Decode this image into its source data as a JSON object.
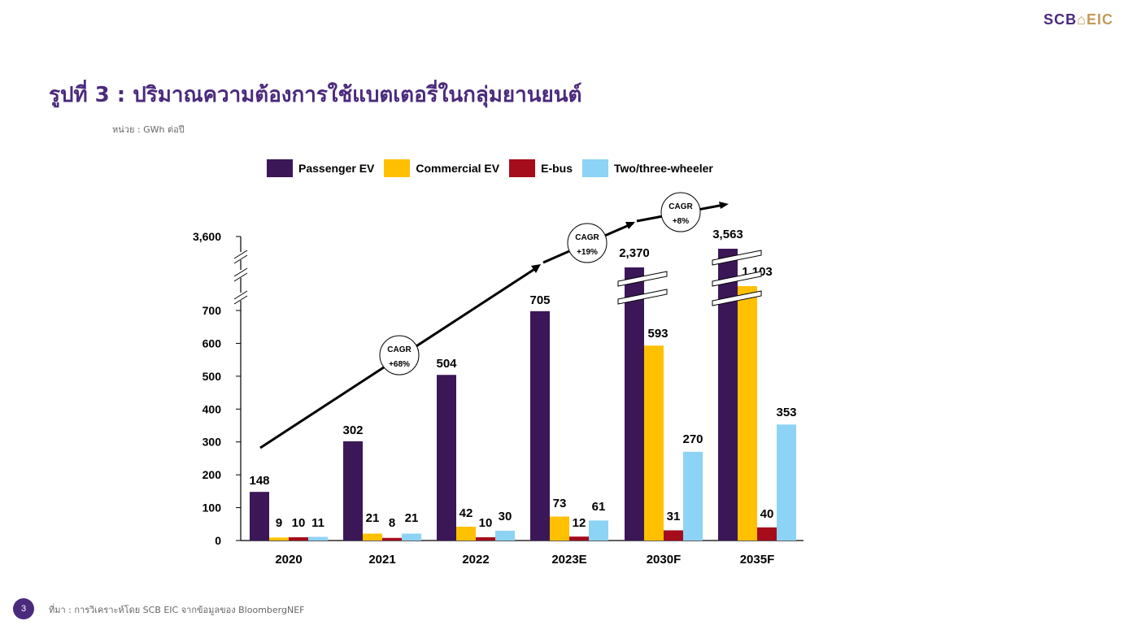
{
  "header": {
    "logo_left": "SCB",
    "logo_mark": "⌂",
    "logo_right": "EIC",
    "title": "รูปที่ 3 : ปริมาณความต้องการใช้แบตเตอรี่ในกลุ่มยานยนต์",
    "unit": "หน่วย : GWh ต่อปี"
  },
  "footer": {
    "page_number": "3",
    "source": "ที่มา : การวิเคราะห์โดย SCB EIC จากข้อมูลของ BloombergNEF"
  },
  "colors": {
    "brand_purple": "#4b2a7d",
    "brand_gold": "#c29a5b"
  },
  "chart_data": {
    "type": "bar",
    "categories": [
      "2020",
      "2021",
      "2022",
      "2023E",
      "2030F",
      "2035F"
    ],
    "series": [
      {
        "name": "Passenger EV",
        "color": "#3b1758",
        "values": [
          148,
          302,
          504,
          705,
          2370,
          3563
        ],
        "labels": [
          "148",
          "302",
          "504",
          "705",
          "2,370",
          "3,563"
        ]
      },
      {
        "name": "Commercial EV",
        "color": "#ffc000",
        "values": [
          9,
          21,
          42,
          73,
          593,
          1103
        ],
        "labels": [
          "9",
          "21",
          "42",
          "73",
          "593",
          "1,103"
        ]
      },
      {
        "name": "E-bus",
        "color": "#a50d1c",
        "values": [
          10,
          8,
          10,
          12,
          31,
          40
        ],
        "labels": [
          "10",
          "8",
          "10",
          "12",
          "31",
          "40"
        ]
      },
      {
        "name": "Two/three-wheeler",
        "color": "#8dd3f5",
        "values": [
          11,
          21,
          30,
          61,
          270,
          353
        ],
        "labels": [
          "11",
          "21",
          "30",
          "61",
          "270",
          "353"
        ]
      }
    ],
    "y_ticks": [
      "0",
      "100",
      "200",
      "300",
      "400",
      "500",
      "600",
      "700",
      "3,600"
    ],
    "ylim": [
      0,
      3600
    ],
    "axis_break": "between 700 and 3,600",
    "cagr_annotations": [
      "CAGR +68%",
      "CAGR +19%",
      "CAGR +8%"
    ],
    "cagr_lines": [
      [
        "CAGR",
        "+68%"
      ],
      [
        "CAGR",
        "+19%"
      ],
      [
        "CAGR",
        "+8%"
      ]
    ],
    "legend_position": "top",
    "grid": false
  }
}
